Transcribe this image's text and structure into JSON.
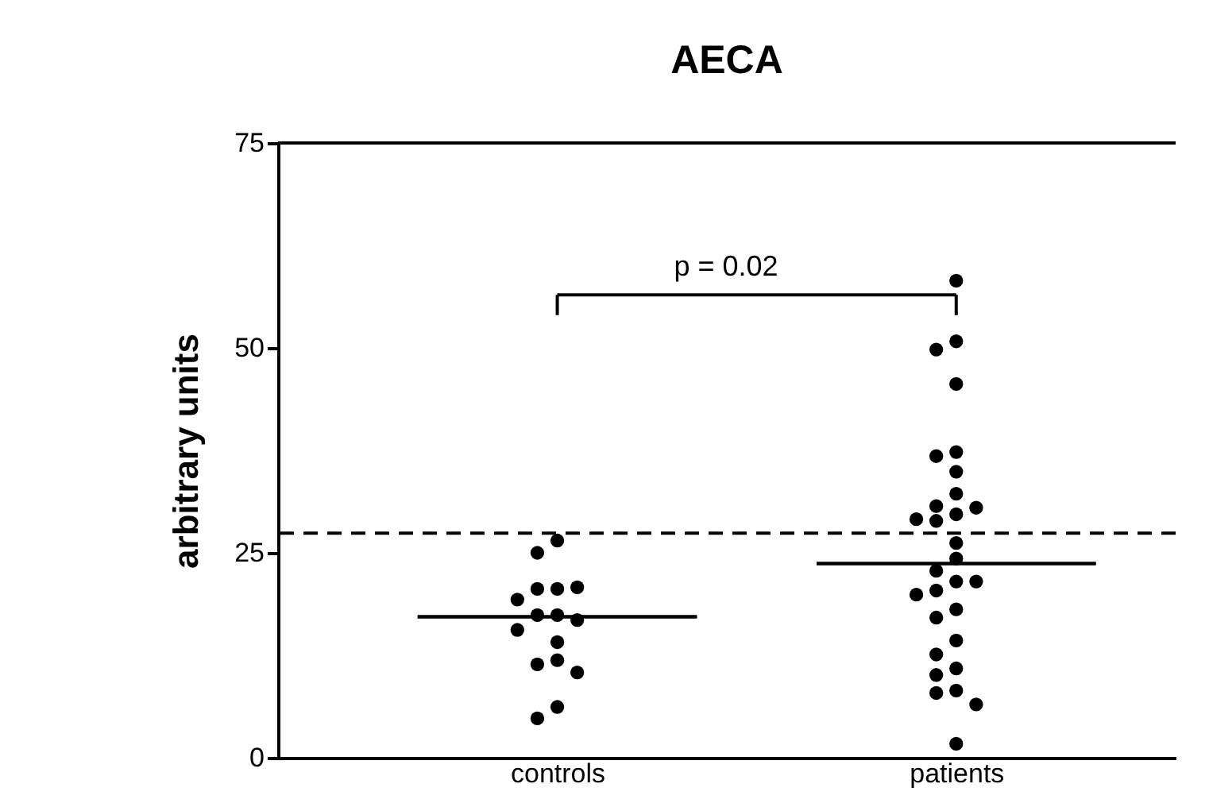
{
  "chart_data": {
    "type": "scatter",
    "title": "AECA",
    "ylabel": "arbitrary units",
    "categories": [
      "controls",
      "patients"
    ],
    "series": [
      {
        "color": "#000000",
        "x": [
          "controls",
          "controls",
          "controls",
          "controls",
          "controls",
          "controls",
          "controls",
          "controls",
          "controls",
          "controls",
          "controls",
          "controls",
          "controls",
          "controls",
          "controls",
          "controls"
        ],
        "values": [
          26.5,
          25,
          20.6,
          20.6,
          20.8,
          19.3,
          17.4,
          17.4,
          16.8,
          15.6,
          14.1,
          11.9,
          11.4,
          10.4,
          6.2,
          4.8
        ]
      },
      {
        "color": "#000000",
        "x": [
          "patients",
          "patients",
          "patients",
          "patients",
          "patients",
          "patients",
          "patients",
          "patients",
          "patients",
          "patients",
          "patients",
          "patients",
          "patients",
          "patients",
          "patients",
          "patients",
          "patients",
          "patients",
          "patients",
          "patients",
          "patients",
          "patients",
          "patients",
          "patients",
          "patients",
          "patients",
          "patients",
          "patients",
          "patients",
          "patients"
        ],
        "values": [
          58.2,
          50.8,
          49.8,
          45.6,
          37.3,
          36.8,
          34.9,
          32.2,
          30.7,
          30.5,
          29.7,
          29.1,
          28.9,
          26.2,
          24.3,
          22.8,
          21.5,
          21.5,
          20.4,
          19.9,
          18.1,
          17.1,
          14.3,
          12.6,
          10.9,
          10.1,
          8.2,
          7.9,
          6.5,
          1.7
        ]
      },
      {
        "type": "box",
        "color": "#000000",
        "boxes": [
          {
            "low": 17.2,
            "q1": 17.2,
            "median": 17.2,
            "q3": 17.2,
            "high": 17.2
          },
          {
            "low": 23.7,
            "q1": 23.7,
            "median": 23.7,
            "q3": 23.7,
            "high": 23.7
          }
        ]
      }
    ],
    "ylim": [
      0,
      75
    ],
    "yticks": [
      0,
      25,
      50,
      75
    ],
    "marker": "circle",
    "ref_lines": [
      {
        "axis": "y",
        "value": 27.4,
        "line_style": "dashed",
        "color": "#000000"
      }
    ],
    "annotations": [
      "p = 0.02"
    ]
  }
}
